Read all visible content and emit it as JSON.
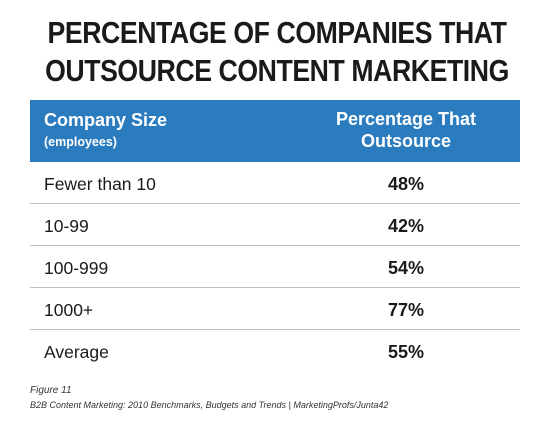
{
  "title_lines": [
    "PERCENTAGE OF COMPANIES THAT",
    "OUTSOURCE CONTENT MARKETING"
  ],
  "header": {
    "size_label": "Company Size",
    "size_sub": "(employees)",
    "pct_line1": "Percentage That",
    "pct_line2": "Outsource"
  },
  "rows": [
    {
      "size": "Fewer than 10",
      "pct": "48%"
    },
    {
      "size": "10-99",
      "pct": "42%"
    },
    {
      "size": "100-999",
      "pct": "54%"
    },
    {
      "size": "1000+",
      "pct": "77%"
    },
    {
      "size": "Average",
      "pct": "55%"
    }
  ],
  "figure_label": "Figure 11",
  "source": "B2B Content Marketing: 2010 Benchmarks, Budgets and Trends | MarketingProfs/Junta42",
  "colors": {
    "header_bg": "#2b7bbf",
    "header_text": "#ffffff",
    "divider": "#bfbfbf"
  },
  "chart_data": {
    "type": "table",
    "columns": [
      "Company Size (employees)",
      "Percentage That Outsource"
    ],
    "categories": [
      "Fewer than 10",
      "10-99",
      "100-999",
      "1000+",
      "Average"
    ],
    "values": [
      48,
      42,
      54,
      77,
      55
    ]
  }
}
